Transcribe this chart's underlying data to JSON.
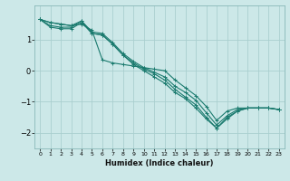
{
  "xlabel": "Humidex (Indice chaleur)",
  "bg_color": "#cce8e8",
  "line_color": "#1a7a6e",
  "grid_color": "#aacfcf",
  "xlim": [
    -0.5,
    23.5
  ],
  "ylim": [
    -2.5,
    2.1
  ],
  "yticks": [
    -2,
    -1,
    0,
    1
  ],
  "xticks": [
    0,
    1,
    2,
    3,
    4,
    5,
    6,
    7,
    8,
    9,
    10,
    11,
    12,
    13,
    14,
    15,
    16,
    17,
    18,
    19,
    20,
    21,
    22,
    23
  ],
  "series": [
    [
      1.65,
      1.55,
      1.5,
      1.45,
      1.5,
      1.3,
      0.35,
      0.25,
      0.2,
      0.15,
      0.1,
      0.05,
      0.0,
      -0.3,
      -0.55,
      -0.8,
      -1.15,
      -1.6,
      -1.3,
      -1.2,
      -1.2,
      -1.2,
      -1.2,
      -1.25
    ],
    [
      1.65,
      1.55,
      1.5,
      1.45,
      1.6,
      1.25,
      1.2,
      0.9,
      0.55,
      0.3,
      0.1,
      -0.05,
      -0.2,
      -0.5,
      -0.7,
      -0.95,
      -1.35,
      -1.75,
      -1.45,
      -1.25,
      -1.2,
      -1.2,
      -1.2,
      -1.25
    ],
    [
      1.65,
      1.4,
      1.35,
      1.35,
      1.55,
      1.2,
      1.15,
      0.85,
      0.5,
      0.25,
      0.05,
      -0.1,
      -0.3,
      -0.6,
      -0.85,
      -1.1,
      -1.5,
      -1.85,
      -1.55,
      -1.3,
      -1.2,
      -1.2,
      -1.2,
      -1.25
    ],
    [
      1.65,
      1.45,
      1.4,
      1.4,
      1.6,
      1.2,
      1.15,
      0.85,
      0.5,
      0.2,
      0.0,
      -0.2,
      -0.4,
      -0.7,
      -0.9,
      -1.2,
      -1.55,
      -1.85,
      -1.5,
      -1.3,
      -1.2,
      -1.2,
      -1.2,
      -1.25
    ]
  ]
}
